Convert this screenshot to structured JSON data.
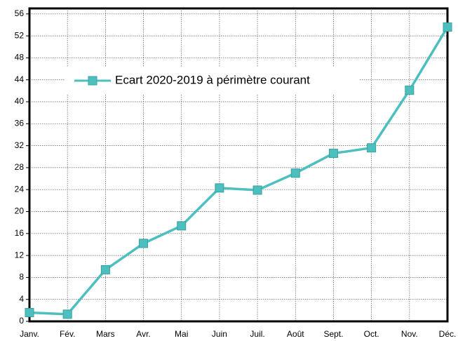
{
  "chart_data": {
    "type": "line",
    "categories": [
      "Janv.",
      "Fév.",
      "Mars",
      "Avr.",
      "Mai",
      "Juin",
      "Juil.",
      "Août",
      "Sept.",
      "Oct.",
      "Nov.",
      "Déc."
    ],
    "series": [
      {
        "name": "Ecart 2020-2019 à périmètre courant",
        "color": "#4dbfbf",
        "values": [
          1.6,
          1.3,
          9.4,
          14.2,
          17.4,
          24.3,
          23.9,
          27.0,
          30.6,
          31.6,
          42.1,
          53.6
        ]
      }
    ],
    "ylim": [
      0,
      57
    ],
    "yticks": [
      0,
      4,
      8,
      12,
      16,
      20,
      24,
      28,
      32,
      36,
      40,
      44,
      48,
      52,
      56
    ],
    "grid": true,
    "legend": "upper left"
  }
}
